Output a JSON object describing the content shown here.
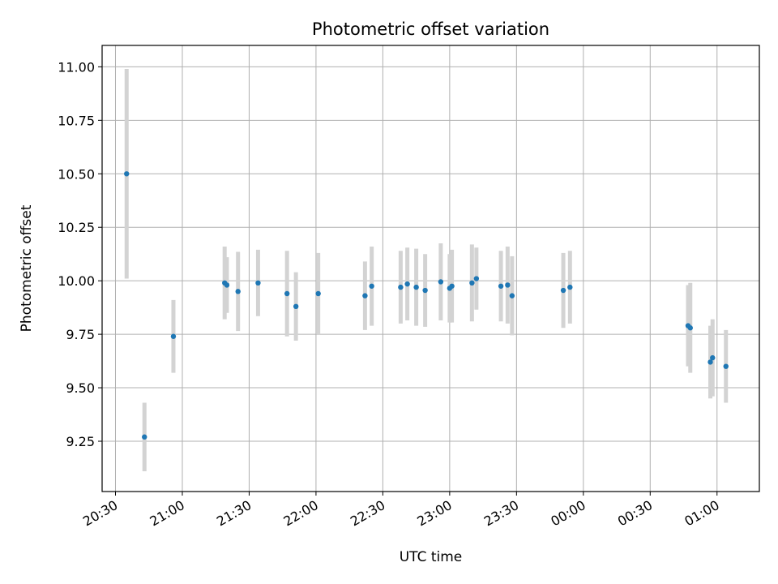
{
  "chart_data": {
    "type": "scatter",
    "title": "Photometric offset variation",
    "xlabel": "UTC time",
    "ylabel": "Photometric offset",
    "x_axis_type": "time",
    "x_date_start": "2000-01-01",
    "xlim": [
      "20:24",
      "01:19"
    ],
    "ylim": [
      9.015,
      11.1
    ],
    "grid": true,
    "point_color": "#1f77b4",
    "errorbar_color": "#d3d3d3",
    "x_ticks": [
      "20:30",
      "21:00",
      "21:30",
      "22:00",
      "22:30",
      "23:00",
      "23:30",
      "00:00",
      "00:30",
      "01:00"
    ],
    "y_ticks": [
      9.25,
      9.5,
      9.75,
      10.0,
      10.25,
      10.5,
      10.75,
      11.0
    ],
    "y_tick_labels": [
      "9.25",
      "9.50",
      "9.75",
      "10.00",
      "10.25",
      "10.50",
      "10.75",
      "11.00"
    ],
    "points": [
      {
        "time": "20:35",
        "y": 10.5,
        "err": 0.49
      },
      {
        "time": "20:43",
        "y": 9.27,
        "err": 0.16
      },
      {
        "time": "20:56",
        "y": 9.74,
        "err": 0.17
      },
      {
        "time": "21:19",
        "y": 9.99,
        "err": 0.17
      },
      {
        "time": "21:20",
        "y": 9.98,
        "err": 0.13
      },
      {
        "time": "21:25",
        "y": 9.95,
        "err": 0.185
      },
      {
        "time": "21:34",
        "y": 9.99,
        "err": 0.155
      },
      {
        "time": "21:47",
        "y": 9.94,
        "err": 0.2
      },
      {
        "time": "21:51",
        "y": 9.88,
        "err": 0.16
      },
      {
        "time": "22:01",
        "y": 9.94,
        "err": 0.19
      },
      {
        "time": "22:22",
        "y": 9.93,
        "err": 0.16
      },
      {
        "time": "22:25",
        "y": 9.975,
        "err": 0.185
      },
      {
        "time": "22:38",
        "y": 9.97,
        "err": 0.17
      },
      {
        "time": "22:41",
        "y": 9.985,
        "err": 0.17
      },
      {
        "time": "22:45",
        "y": 9.97,
        "err": 0.18
      },
      {
        "time": "22:49",
        "y": 9.955,
        "err": 0.17
      },
      {
        "time": "22:56",
        "y": 9.995,
        "err": 0.18
      },
      {
        "time": "23:00",
        "y": 9.965,
        "err": 0.16
      },
      {
        "time": "23:01",
        "y": 9.975,
        "err": 0.17
      },
      {
        "time": "23:10",
        "y": 9.99,
        "err": 0.18
      },
      {
        "time": "23:12",
        "y": 10.01,
        "err": 0.145
      },
      {
        "time": "23:23",
        "y": 9.975,
        "err": 0.165
      },
      {
        "time": "23:26",
        "y": 9.98,
        "err": 0.18
      },
      {
        "time": "23:28",
        "y": 9.93,
        "err": 0.185
      },
      {
        "time": "23:51",
        "y": 9.955,
        "err": 0.175
      },
      {
        "time": "23:54",
        "y": 9.97,
        "err": 0.17
      },
      {
        "time": "00:47",
        "y": 9.79,
        "err": 0.19
      },
      {
        "time": "00:48",
        "y": 9.78,
        "err": 0.21
      },
      {
        "time": "00:57",
        "y": 9.62,
        "err": 0.17
      },
      {
        "time": "00:58",
        "y": 9.64,
        "err": 0.18
      },
      {
        "time": "01:04",
        "y": 9.6,
        "err": 0.17
      }
    ]
  }
}
